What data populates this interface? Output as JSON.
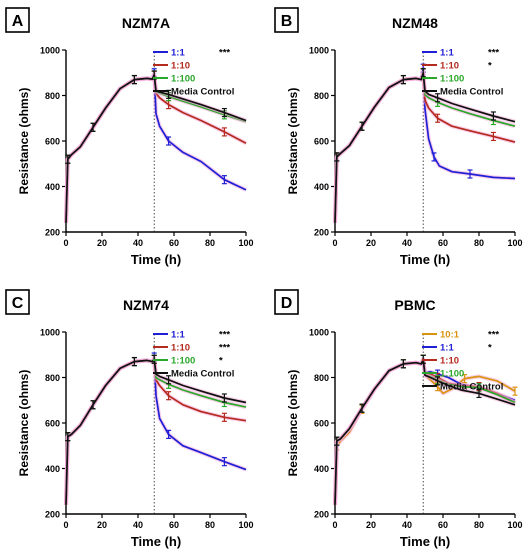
{
  "figure": {
    "panels": [
      {
        "letter": "A",
        "title": "NZM7A"
      },
      {
        "letter": "B",
        "title": "NZM48"
      },
      {
        "letter": "C",
        "title": "NZM74"
      },
      {
        "letter": "D",
        "title": "PBMC"
      }
    ]
  },
  "colors": {
    "blue": "#1f1fd6",
    "red": "#b52a1e",
    "green": "#2aa82a",
    "black": "#111111",
    "orange": "#d9940f",
    "error_band": "#f4a8d8"
  },
  "chart_data": [
    {
      "type": "line",
      "title": "NZM7A",
      "panel_label": "A",
      "xlabel": "Time (h)",
      "ylabel": "Resistance (ohms)",
      "xlim": [
        0,
        100
      ],
      "ylim": [
        200,
        1000
      ],
      "xticks": [
        0,
        20,
        40,
        60,
        80,
        100
      ],
      "yticks": [
        200,
        400,
        600,
        800,
        1000
      ],
      "vline_x": 49,
      "grid": false,
      "legend_position": "top-right",
      "series": [
        {
          "name": "1:1",
          "color": "blue",
          "significance": "***",
          "x": [
            0,
            1,
            3,
            8,
            15,
            22,
            30,
            38,
            45,
            48,
            49,
            50,
            52,
            57,
            65,
            75,
            88,
            100
          ],
          "y": [
            240,
            520,
            540,
            575,
            660,
            745,
            830,
            870,
            875,
            872,
            900,
            720,
            665,
            600,
            550,
            510,
            430,
            385
          ]
        },
        {
          "name": "1:10",
          "color": "red",
          "significance": "",
          "x": [
            0,
            1,
            3,
            8,
            15,
            22,
            30,
            38,
            45,
            48,
            49,
            50,
            52,
            57,
            65,
            75,
            88,
            100
          ],
          "y": [
            240,
            520,
            540,
            575,
            660,
            745,
            830,
            870,
            875,
            872,
            890,
            810,
            790,
            760,
            725,
            690,
            640,
            590
          ]
        },
        {
          "name": "1:100",
          "color": "green",
          "significance": "",
          "x": [
            0,
            1,
            3,
            8,
            15,
            22,
            30,
            38,
            45,
            48,
            49,
            50,
            52,
            57,
            65,
            75,
            88,
            100
          ],
          "y": [
            240,
            520,
            540,
            575,
            660,
            745,
            830,
            870,
            875,
            872,
            890,
            815,
            810,
            795,
            775,
            750,
            715,
            685
          ]
        },
        {
          "name": "Media Control",
          "color": "black",
          "significance": "",
          "x": [
            0,
            1,
            3,
            8,
            15,
            22,
            30,
            38,
            45,
            48,
            49,
            50,
            52,
            57,
            65,
            75,
            88,
            100
          ],
          "y": [
            240,
            520,
            540,
            575,
            660,
            745,
            830,
            870,
            875,
            872,
            890,
            820,
            815,
            805,
            785,
            760,
            725,
            690
          ]
        }
      ]
    },
    {
      "type": "line",
      "title": "NZM48",
      "panel_label": "B",
      "xlabel": "Time (h)",
      "ylabel": "Resistance (ohms)",
      "xlim": [
        0,
        100
      ],
      "ylim": [
        200,
        1000
      ],
      "xticks": [
        0,
        20,
        40,
        60,
        80,
        100
      ],
      "yticks": [
        200,
        400,
        600,
        800,
        1000
      ],
      "vline_x": 49,
      "grid": false,
      "legend_position": "top-right",
      "series": [
        {
          "name": "1:1",
          "color": "blue",
          "significance": "***",
          "x": [
            0,
            1,
            3,
            8,
            15,
            22,
            30,
            38,
            45,
            48,
            49,
            50,
            52,
            55,
            58,
            65,
            75,
            88,
            100
          ],
          "y": [
            240,
            530,
            545,
            580,
            665,
            750,
            835,
            870,
            875,
            870,
            920,
            740,
            610,
            530,
            490,
            465,
            455,
            440,
            435
          ]
        },
        {
          "name": "1:10",
          "color": "red",
          "significance": "*",
          "x": [
            0,
            1,
            3,
            8,
            15,
            22,
            30,
            38,
            45,
            48,
            49,
            50,
            52,
            57,
            65,
            75,
            88,
            100
          ],
          "y": [
            240,
            530,
            545,
            580,
            665,
            750,
            835,
            870,
            875,
            870,
            900,
            780,
            745,
            700,
            665,
            645,
            620,
            595
          ]
        },
        {
          "name": "1:100",
          "color": "green",
          "significance": "",
          "x": [
            0,
            1,
            3,
            8,
            15,
            22,
            30,
            38,
            45,
            48,
            49,
            50,
            52,
            57,
            65,
            75,
            88,
            100
          ],
          "y": [
            240,
            530,
            545,
            580,
            665,
            750,
            835,
            870,
            875,
            870,
            900,
            805,
            790,
            770,
            745,
            720,
            690,
            665
          ]
        },
        {
          "name": "Media Control",
          "color": "black",
          "significance": "",
          "x": [
            0,
            1,
            3,
            8,
            15,
            22,
            30,
            38,
            45,
            48,
            49,
            50,
            52,
            57,
            65,
            75,
            88,
            100
          ],
          "y": [
            240,
            530,
            545,
            580,
            665,
            750,
            835,
            870,
            875,
            870,
            900,
            820,
            805,
            790,
            765,
            740,
            710,
            685
          ]
        }
      ]
    },
    {
      "type": "line",
      "title": "NZM74",
      "panel_label": "C",
      "xlabel": "Time (h)",
      "ylabel": "Resistance (ohms)",
      "xlim": [
        0,
        100
      ],
      "ylim": [
        200,
        1000
      ],
      "xticks": [
        0,
        20,
        40,
        60,
        80,
        100
      ],
      "yticks": [
        200,
        400,
        600,
        800,
        1000
      ],
      "vline_x": 49,
      "grid": false,
      "legend_position": "top-right",
      "series": [
        {
          "name": "1:1",
          "color": "blue",
          "significance": "***",
          "x": [
            0,
            1,
            3,
            8,
            15,
            22,
            30,
            38,
            45,
            48,
            49,
            50,
            52,
            57,
            65,
            75,
            88,
            100
          ],
          "y": [
            240,
            540,
            550,
            590,
            680,
            765,
            840,
            870,
            875,
            870,
            890,
            720,
            620,
            550,
            500,
            470,
            430,
            395
          ]
        },
        {
          "name": "1:10",
          "color": "red",
          "significance": "***",
          "x": [
            0,
            1,
            3,
            8,
            15,
            22,
            30,
            38,
            45,
            48,
            49,
            50,
            52,
            57,
            65,
            75,
            88,
            100
          ],
          "y": [
            240,
            540,
            550,
            590,
            680,
            765,
            840,
            870,
            875,
            870,
            880,
            790,
            765,
            720,
            680,
            650,
            625,
            610
          ]
        },
        {
          "name": "1:100",
          "color": "green",
          "significance": "*",
          "x": [
            0,
            1,
            3,
            8,
            15,
            22,
            30,
            38,
            45,
            48,
            49,
            50,
            52,
            57,
            65,
            75,
            88,
            100
          ],
          "y": [
            240,
            540,
            550,
            590,
            680,
            765,
            840,
            870,
            875,
            870,
            880,
            800,
            790,
            770,
            745,
            720,
            690,
            670
          ]
        },
        {
          "name": "Media Control",
          "color": "black",
          "significance": "",
          "x": [
            0,
            1,
            3,
            8,
            15,
            22,
            30,
            38,
            45,
            48,
            49,
            50,
            52,
            57,
            65,
            75,
            88,
            100
          ],
          "y": [
            240,
            540,
            550,
            590,
            680,
            765,
            840,
            870,
            875,
            870,
            880,
            815,
            805,
            790,
            765,
            740,
            710,
            690
          ]
        }
      ]
    },
    {
      "type": "line",
      "title": "PBMC",
      "panel_label": "D",
      "xlabel": "Time (h)",
      "ylabel": "Resistance (ohms)",
      "xlim": [
        0,
        100
      ],
      "ylim": [
        200,
        1000
      ],
      "xticks": [
        0,
        20,
        40,
        60,
        80,
        100
      ],
      "yticks": [
        200,
        400,
        600,
        800,
        1000
      ],
      "vline_x": 49,
      "grid": false,
      "legend_position": "top-right",
      "series": [
        {
          "name": "10:1",
          "color": "orange",
          "significance": "***",
          "x": [
            0,
            1,
            3,
            8,
            15,
            22,
            30,
            38,
            45,
            48,
            49,
            50,
            53,
            57,
            60,
            65,
            72,
            80,
            90,
            100
          ],
          "y": [
            240,
            500,
            520,
            560,
            660,
            750,
            830,
            860,
            865,
            860,
            880,
            810,
            790,
            760,
            730,
            750,
            795,
            805,
            785,
            740
          ]
        },
        {
          "name": "1:1",
          "color": "blue",
          "significance": "*",
          "x": [
            0,
            1,
            3,
            8,
            15,
            22,
            30,
            38,
            45,
            48,
            49,
            50,
            53,
            57,
            63,
            70,
            80,
            90,
            100
          ],
          "y": [
            240,
            520,
            530,
            575,
            665,
            750,
            830,
            860,
            865,
            860,
            880,
            820,
            825,
            815,
            800,
            770,
            755,
            730,
            700
          ]
        },
        {
          "name": "1:10",
          "color": "red",
          "significance": "",
          "x": [
            0,
            1,
            3,
            8,
            15,
            22,
            30,
            38,
            45,
            48,
            49,
            50,
            53,
            57,
            63,
            70,
            80,
            90,
            100
          ],
          "y": [
            240,
            520,
            530,
            575,
            665,
            750,
            830,
            860,
            865,
            860,
            880,
            815,
            815,
            800,
            775,
            765,
            760,
            730,
            690
          ]
        },
        {
          "name": "1:100",
          "color": "green",
          "significance": "",
          "x": [
            0,
            1,
            3,
            8,
            15,
            22,
            30,
            38,
            45,
            48,
            49,
            50,
            53,
            57,
            63,
            70,
            80,
            90,
            100
          ],
          "y": [
            240,
            520,
            530,
            575,
            665,
            750,
            830,
            860,
            865,
            860,
            880,
            810,
            805,
            790,
            770,
            760,
            755,
            725,
            690
          ]
        },
        {
          "name": "Media Control",
          "color": "black",
          "significance": "",
          "x": [
            0,
            1,
            3,
            8,
            15,
            22,
            30,
            38,
            45,
            48,
            49,
            50,
            53,
            57,
            63,
            70,
            80,
            90,
            100
          ],
          "y": [
            240,
            520,
            530,
            575,
            665,
            750,
            830,
            860,
            865,
            860,
            880,
            810,
            800,
            785,
            765,
            745,
            730,
            705,
            680
          ]
        }
      ]
    }
  ]
}
